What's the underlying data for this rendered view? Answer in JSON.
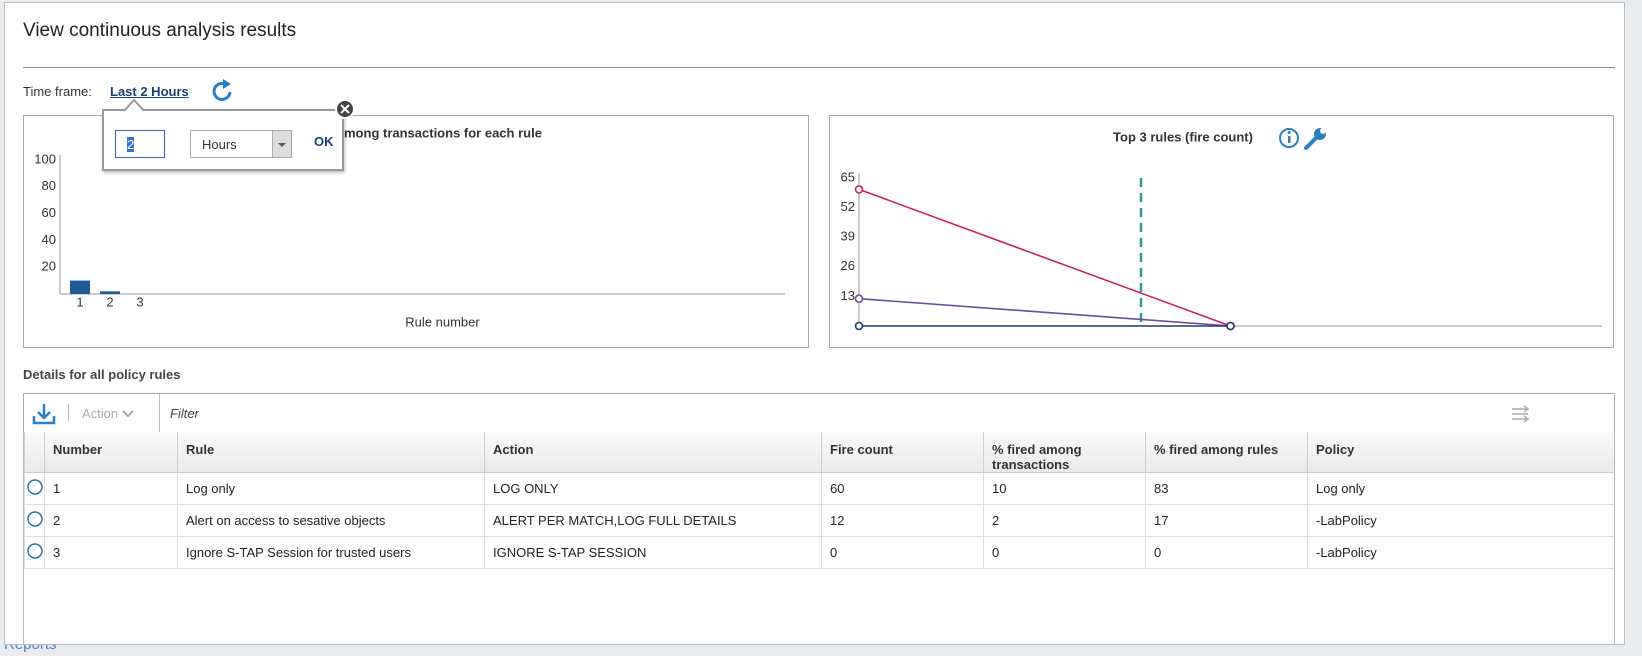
{
  "background": {
    "nav_item": "Reports"
  },
  "dialog": {
    "title": "View continuous analysis results"
  },
  "time_frame": {
    "label": "Time frame:",
    "value": "Last 2 Hours"
  },
  "popup": {
    "amount": "2",
    "unit": "Hours",
    "ok": "OK"
  },
  "chart_data": [
    {
      "type": "bar",
      "title": "mong transactions for each rule",
      "x_label": "Rule number",
      "categories": [
        "1",
        "2",
        "3"
      ],
      "values": [
        10,
        2,
        0
      ],
      "color": "#1f5a96",
      "ylim": [
        0,
        100
      ],
      "yticks": [
        20,
        40,
        60,
        80,
        100
      ]
    },
    {
      "type": "line",
      "title": "Top 3 rules (fire count)",
      "categories": [
        null,
        null
      ],
      "series": [
        {
          "color": "#c8235a",
          "values": [
            60,
            0
          ]
        },
        {
          "color": "#6a4c9c",
          "values": [
            12,
            0
          ]
        },
        {
          "color": "#1f3a6e",
          "values": [
            0,
            0
          ]
        }
      ],
      "ylim": [
        0,
        65
      ],
      "yticks": [
        13,
        26,
        39,
        52,
        65
      ]
    }
  ],
  "details": {
    "title": "Details for all policy rules",
    "action": "Action",
    "filter": "Filter",
    "columns": [
      "Number",
      "Rule",
      "Action",
      "Fire count",
      "% fired among transactions",
      "% fired among rules",
      "Policy"
    ],
    "rows": [
      [
        1,
        "Log only",
        "LOG ONLY",
        60,
        10,
        83,
        "Log only"
      ],
      [
        2,
        "Alert on access to sesative objects",
        "ALERT PER MATCH,LOG FULL DETAILS",
        12,
        2,
        17,
        "-LabPolicy"
      ],
      [
        3,
        "Ignore S-TAP Session for trusted users",
        "IGNORE S-TAP SESSION",
        0,
        0,
        0,
        "-LabPolicy"
      ]
    ]
  }
}
